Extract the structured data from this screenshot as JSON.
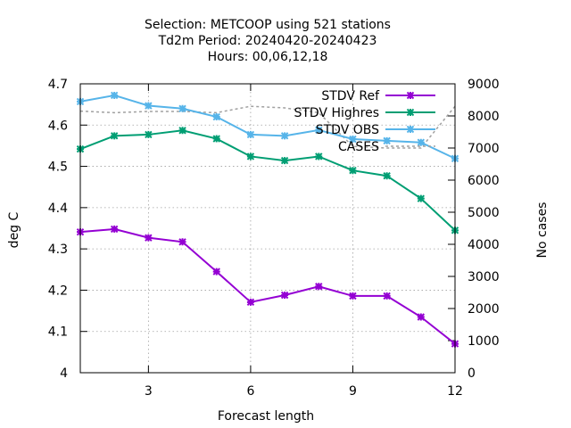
{
  "chart_data": {
    "type": "line",
    "title_lines": [
      "Selection: METCOOP using   521 stations",
      "Td2m   Period: 20240420-20240423",
      "Hours:  00,06,12,18"
    ],
    "xlabel": "Forecast length",
    "ylabel": "deg C",
    "y2label": "No cases",
    "xlim": [
      1,
      12
    ],
    "ylim": [
      4.0,
      4.7
    ],
    "y2lim": [
      0,
      9000
    ],
    "x_ticks": [
      3,
      6,
      9,
      12
    ],
    "y_ticks": [
      "4",
      "4.1",
      "4.2",
      "4.3",
      "4.4",
      "4.5",
      "4.6",
      "4.7"
    ],
    "y2_ticks": [
      "0",
      "1000",
      "2000",
      "3000",
      "4000",
      "5000",
      "6000",
      "7000",
      "8000",
      "9000"
    ],
    "grid": true,
    "legend_position": "top-right",
    "x": [
      1,
      2,
      3,
      4,
      5,
      6,
      7,
      8,
      9,
      10,
      11,
      12
    ],
    "series": [
      {
        "name": "STDV Ref",
        "axis": "y",
        "color": "#9400d3",
        "values": [
          4.341,
          4.348,
          4.327,
          4.317,
          4.245,
          4.171,
          4.188,
          4.209,
          4.186,
          4.186,
          4.135,
          4.07
        ]
      },
      {
        "name": "STDV Highres",
        "axis": "y",
        "color": "#009e73",
        "values": [
          4.542,
          4.574,
          4.577,
          4.587,
          4.567,
          4.524,
          4.514,
          4.524,
          4.49,
          4.477,
          4.422,
          4.345
        ]
      },
      {
        "name": "STDV OBS",
        "axis": "y",
        "color": "#56b4e9",
        "values": [
          4.657,
          4.672,
          4.647,
          4.64,
          4.62,
          4.577,
          4.574,
          4.588,
          4.566,
          4.562,
          4.558,
          4.519
        ]
      },
      {
        "name": "CASES",
        "axis": "y2",
        "color": "#a0a0a0",
        "dashed": true,
        "values": [
          8150,
          8100,
          8140,
          8140,
          8100,
          8300,
          8250,
          8100,
          7050,
          7000,
          7000,
          8300
        ]
      }
    ]
  }
}
